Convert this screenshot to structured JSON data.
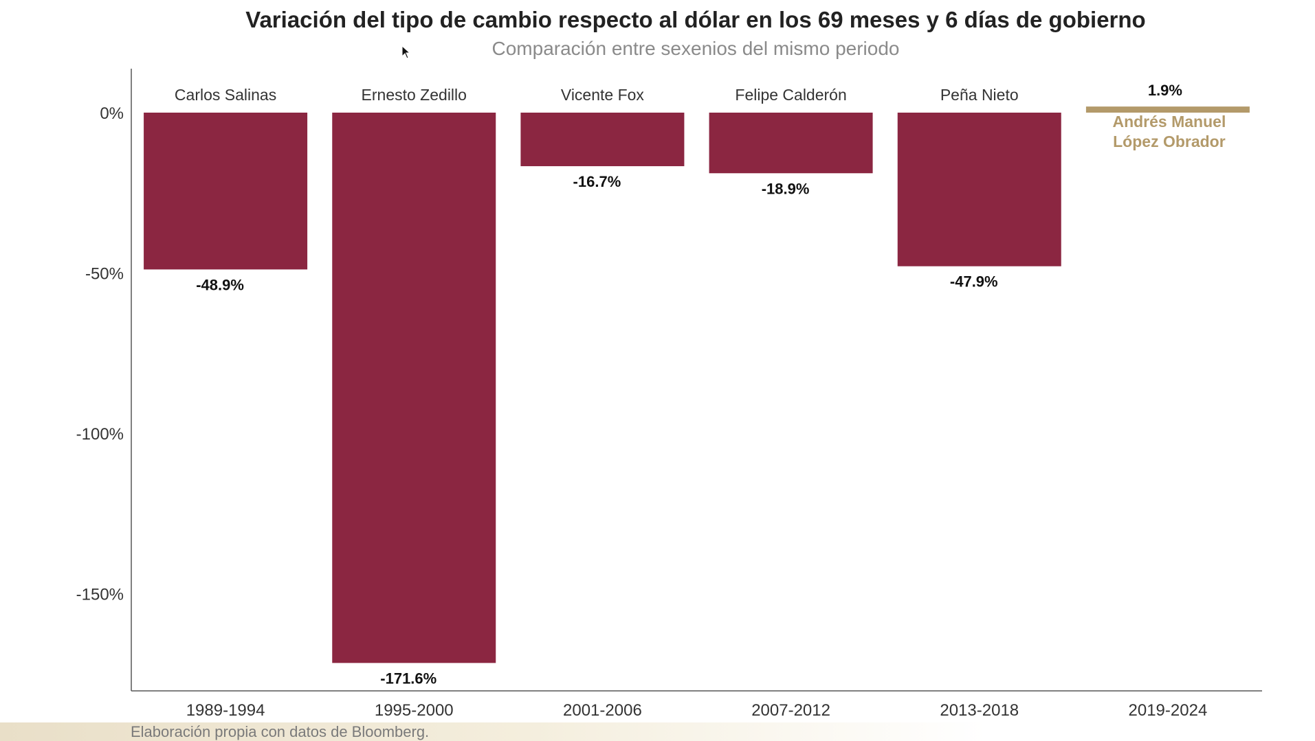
{
  "chart_data": {
    "type": "bar",
    "title": "Variación del tipo de cambio respecto al dólar en los 69 meses y 6 días de gobierno",
    "subtitle": "Comparación entre sexenios del mismo periodo",
    "categories": [
      "1989-1994",
      "1995-2000",
      "2001-2006",
      "2007-2012",
      "2013-2018",
      "2019-2024"
    ],
    "bar_names": [
      "Carlos Salinas",
      "Ernesto Zedillo",
      "Vicente Fox",
      "Felipe Calderón",
      "Peña Nieto",
      "Andrés Manuel López Obrador"
    ],
    "values": [
      -48.9,
      -171.6,
      -16.7,
      -18.9,
      -47.9,
      1.9
    ],
    "data_labels": [
      "-48.9%",
      "-171.6%",
      "-16.7%",
      "-18.9%",
      "-47.9%",
      "1.9%"
    ],
    "yticks": [
      0,
      -50,
      -100,
      -150
    ],
    "ytick_labels": [
      "0%",
      "-50%",
      "-100%",
      "-150%"
    ],
    "ylim": [
      -180,
      12
    ],
    "grid": false,
    "colors": {
      "bar": "#8b2641",
      "highlight": "#b39a6a",
      "axis": "#555555",
      "text": "#333333",
      "label": "#111111"
    }
  },
  "footer": {
    "source": "Elaboración propia con datos de Bloomberg."
  }
}
